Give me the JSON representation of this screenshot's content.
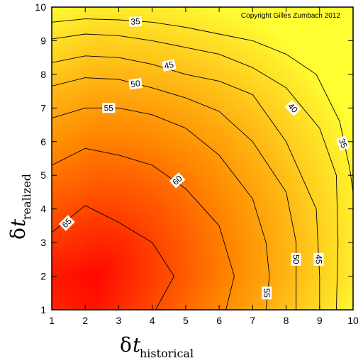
{
  "chart_data": {
    "type": "heatmap",
    "subtype": "filled-contour",
    "copyright": "Copyright Gilles Zumbach 2012",
    "xlabel": {
      "symbol": "δ",
      "var": "t",
      "sub": "historical"
    },
    "ylabel": {
      "symbol": "δ",
      "var": "t",
      "sub": "realized"
    },
    "xlim": [
      1,
      10
    ],
    "ylim": [
      1,
      10
    ],
    "x_ticks": [
      "1",
      "2",
      "3",
      "4",
      "5",
      "6",
      "7",
      "8",
      "9",
      "10"
    ],
    "y_ticks": [
      "1",
      "2",
      "3",
      "4",
      "5",
      "6",
      "7",
      "8",
      "9",
      "10"
    ],
    "colorscale": {
      "low": "#ffff33",
      "mid": "#ff8800",
      "high": "#ff0000",
      "range": [
        28,
        68
      ]
    },
    "grid": false,
    "contours": [
      {
        "level": 65,
        "points": [
          [
            1,
            3.3
          ],
          [
            2,
            4.1
          ],
          [
            3,
            3.6
          ],
          [
            4,
            3.0
          ],
          [
            4.65,
            2.0
          ],
          [
            4.1,
            1.0
          ]
        ]
      },
      {
        "level": 60,
        "points": [
          [
            1,
            5.3
          ],
          [
            2,
            5.8
          ],
          [
            3,
            5.6
          ],
          [
            4,
            5.3
          ],
          [
            5,
            4.6
          ],
          [
            6,
            3.5
          ],
          [
            6.45,
            2.0
          ],
          [
            6.2,
            1.0
          ]
        ]
      },
      {
        "level": 55,
        "points": [
          [
            1,
            6.7
          ],
          [
            2,
            7.0
          ],
          [
            3,
            7.0
          ],
          [
            4,
            6.8
          ],
          [
            5,
            6.4
          ],
          [
            6,
            5.6
          ],
          [
            7,
            4.3
          ],
          [
            7.4,
            3.0
          ],
          [
            7.5,
            2.0
          ],
          [
            7.4,
            1.0
          ]
        ]
      },
      {
        "level": 50,
        "points": [
          [
            1,
            7.65
          ],
          [
            2,
            7.9
          ],
          [
            3,
            7.85
          ],
          [
            4,
            7.6
          ],
          [
            5,
            7.3
          ],
          [
            6,
            6.9
          ],
          [
            7,
            6.0
          ],
          [
            8,
            4.5
          ],
          [
            8.3,
            3.0
          ],
          [
            8.3,
            1.0
          ]
        ]
      },
      {
        "level": 45,
        "points": [
          [
            1,
            8.35
          ],
          [
            2,
            8.55
          ],
          [
            3,
            8.5
          ],
          [
            4,
            8.3
          ],
          [
            5,
            8.0
          ],
          [
            6,
            7.8
          ],
          [
            7,
            7.4
          ],
          [
            8,
            6.0
          ],
          [
            8.9,
            4.0
          ],
          [
            9.0,
            2.0
          ],
          [
            9.0,
            1.0
          ]
        ]
      },
      {
        "level": 40,
        "points": [
          [
            1,
            9.05
          ],
          [
            2,
            9.2
          ],
          [
            3,
            9.15
          ],
          [
            4,
            9.0
          ],
          [
            5,
            8.8
          ],
          [
            6,
            8.6
          ],
          [
            7,
            8.2
          ],
          [
            8,
            7.6
          ],
          [
            9,
            6.4
          ],
          [
            9.5,
            5.0
          ],
          [
            9.55,
            3.0
          ],
          [
            9.5,
            1.0
          ]
        ]
      },
      {
        "level": 35,
        "points": [
          [
            1,
            9.55
          ],
          [
            2,
            9.65
          ],
          [
            3,
            9.62
          ],
          [
            4,
            9.55
          ],
          [
            5,
            9.4
          ],
          [
            6,
            9.2
          ],
          [
            7,
            9.0
          ],
          [
            8,
            8.6
          ],
          [
            8.9,
            8.0
          ],
          [
            9.6,
            6.6
          ],
          [
            9.9,
            5.2
          ],
          [
            10,
            4.5
          ]
        ]
      }
    ],
    "contour_labels": [
      {
        "text": "35",
        "x": 3.5,
        "y": 9.57,
        "angle": -3
      },
      {
        "text": "45",
        "x": 4.5,
        "y": 8.27,
        "angle": -12
      },
      {
        "text": "50",
        "x": 3.5,
        "y": 7.72,
        "angle": -8
      },
      {
        "text": "55",
        "x": 2.7,
        "y": 7.0,
        "angle": 0
      },
      {
        "text": "60",
        "x": 4.75,
        "y": 4.85,
        "angle": -42
      },
      {
        "text": "65",
        "x": 1.45,
        "y": 3.58,
        "angle": -45
      },
      {
        "text": "40",
        "x": 8.2,
        "y": 7.0,
        "angle": 45
      },
      {
        "text": "35",
        "x": 9.7,
        "y": 5.95,
        "angle": 70
      },
      {
        "text": "50",
        "x": 8.3,
        "y": 2.5,
        "angle": 90
      },
      {
        "text": "45",
        "x": 8.97,
        "y": 2.5,
        "angle": 90
      },
      {
        "text": "55",
        "x": 7.42,
        "y": 1.5,
        "angle": 90
      }
    ]
  }
}
